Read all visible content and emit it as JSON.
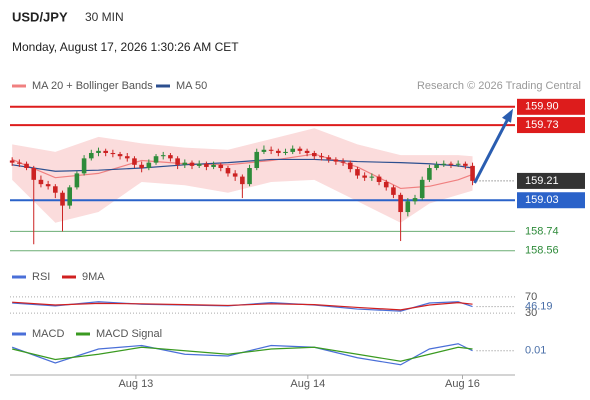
{
  "header": {
    "symbol": "USD/JPY",
    "interval": "30 MIN",
    "datetime": "Monday, August 17, 2026 1:30:26 AM CET"
  },
  "chart_data": [
    {
      "type": "candlestick",
      "credit": "Research © 2026 Trading Central",
      "up_color": "#2e8b3a",
      "down_color": "#cc2222",
      "last_price_color": "#333333",
      "candles": [
        [
          159.4,
          159.43,
          159.35,
          159.38
        ],
        [
          159.38,
          159.41,
          159.34,
          159.37
        ],
        [
          159.37,
          159.39,
          159.31,
          159.33
        ],
        [
          159.33,
          159.35,
          158.62,
          159.22
        ],
        [
          159.22,
          159.26,
          159.15,
          159.18
        ],
        [
          159.18,
          159.21,
          159.13,
          159.16
        ],
        [
          159.16,
          159.18,
          159.05,
          159.1
        ],
        [
          159.1,
          159.12,
          158.74,
          158.98
        ],
        [
          158.98,
          159.17,
          158.95,
          159.15
        ],
        [
          159.15,
          159.3,
          159.13,
          159.28
        ],
        [
          159.28,
          159.45,
          159.26,
          159.42
        ],
        [
          159.42,
          159.5,
          159.4,
          159.47
        ],
        [
          159.47,
          159.52,
          159.44,
          159.49
        ],
        [
          159.49,
          159.51,
          159.44,
          159.47
        ],
        [
          159.47,
          159.5,
          159.43,
          159.46
        ],
        [
          159.46,
          159.48,
          159.41,
          159.44
        ],
        [
          159.44,
          159.47,
          159.39,
          159.42
        ],
        [
          159.42,
          159.44,
          159.33,
          159.36
        ],
        [
          159.36,
          159.39,
          159.29,
          159.33
        ],
        [
          159.33,
          159.41,
          159.31,
          159.38
        ],
        [
          159.38,
          159.46,
          159.36,
          159.44
        ],
        [
          159.44,
          159.48,
          159.41,
          159.45
        ],
        [
          159.45,
          159.47,
          159.39,
          159.42
        ],
        [
          159.42,
          159.44,
          159.32,
          159.36
        ],
        [
          159.36,
          159.41,
          159.33,
          159.38
        ],
        [
          159.38,
          159.4,
          159.32,
          159.35
        ],
        [
          159.35,
          159.4,
          159.33,
          159.37
        ],
        [
          159.37,
          159.39,
          159.31,
          159.34
        ],
        [
          159.34,
          159.39,
          159.32,
          159.36
        ],
        [
          159.36,
          159.38,
          159.3,
          159.33
        ],
        [
          159.33,
          159.35,
          159.25,
          159.28
        ],
        [
          159.28,
          159.31,
          159.21,
          159.25
        ],
        [
          159.25,
          159.27,
          159.05,
          159.18
        ],
        [
          159.18,
          159.36,
          159.16,
          159.33
        ],
        [
          159.33,
          159.51,
          159.31,
          159.48
        ],
        [
          159.48,
          159.54,
          159.46,
          159.5
        ],
        [
          159.5,
          159.53,
          159.46,
          159.49
        ],
        [
          159.49,
          159.51,
          159.44,
          159.47
        ],
        [
          159.47,
          159.51,
          159.45,
          159.48
        ],
        [
          159.48,
          159.54,
          159.46,
          159.51
        ],
        [
          159.51,
          159.53,
          159.46,
          159.49
        ],
        [
          159.49,
          159.51,
          159.44,
          159.47
        ],
        [
          159.47,
          159.49,
          159.41,
          159.44
        ],
        [
          159.44,
          159.47,
          159.4,
          159.43
        ],
        [
          159.43,
          159.45,
          159.38,
          159.41
        ],
        [
          159.41,
          159.43,
          159.36,
          159.39
        ],
        [
          159.39,
          159.42,
          159.35,
          159.38
        ],
        [
          159.38,
          159.4,
          159.29,
          159.32
        ],
        [
          159.32,
          159.34,
          159.23,
          159.26
        ],
        [
          159.26,
          159.29,
          159.21,
          159.24
        ],
        [
          159.24,
          159.28,
          159.21,
          159.25
        ],
        [
          159.25,
          159.27,
          159.17,
          159.2
        ],
        [
          159.2,
          159.22,
          159.12,
          159.15
        ],
        [
          159.15,
          159.17,
          159.05,
          159.08
        ],
        [
          159.08,
          159.1,
          158.65,
          158.92
        ],
        [
          158.92,
          159.05,
          158.88,
          159.02
        ],
        [
          159.02,
          159.08,
          158.99,
          159.05
        ],
        [
          159.05,
          159.25,
          159.03,
          159.22
        ],
        [
          159.22,
          159.36,
          159.2,
          159.33
        ],
        [
          159.33,
          159.39,
          159.31,
          159.36
        ],
        [
          159.36,
          159.4,
          159.34,
          159.37
        ],
        [
          159.37,
          159.39,
          159.33,
          159.36
        ],
        [
          159.36,
          159.4,
          159.34,
          159.37
        ],
        [
          159.37,
          159.39,
          159.32,
          159.35
        ],
        [
          159.35,
          159.38,
          159.17,
          159.21
        ]
      ],
      "series": [
        {
          "name": "MA 20 + Bollinger Bands",
          "color": "#f08080",
          "x": [
            0,
            6,
            12,
            18,
            24,
            30,
            36,
            42,
            48,
            54,
            58,
            62,
            64
          ],
          "values": [
            159.41,
            159.24,
            159.28,
            159.4,
            159.37,
            159.36,
            159.4,
            159.46,
            159.34,
            159.14,
            159.16,
            159.22,
            159.27
          ]
        },
        {
          "name": "MA 50",
          "color": "#2c4f8f",
          "x": [
            0,
            6,
            12,
            18,
            24,
            30,
            36,
            42,
            48,
            54,
            58,
            62,
            64
          ],
          "values": [
            159.36,
            159.3,
            159.31,
            159.33,
            159.36,
            159.38,
            159.41,
            159.41,
            159.39,
            159.38,
            159.37,
            159.35,
            159.33
          ]
        }
      ],
      "bands": {
        "color": "#fbdcdc",
        "x": [
          0,
          6,
          12,
          18,
          24,
          30,
          36,
          42,
          48,
          54,
          58,
          62,
          64
        ],
        "upper": [
          159.55,
          159.48,
          159.62,
          159.56,
          159.52,
          159.5,
          159.6,
          159.7,
          159.55,
          159.45,
          159.45,
          159.45,
          159.44
        ],
        "lower": [
          159.22,
          158.82,
          158.92,
          159.2,
          159.17,
          159.1,
          159.2,
          159.22,
          159.02,
          158.82,
          159.0,
          159.08,
          159.12
        ]
      },
      "levels": [
        {
          "value": 159.9,
          "label": "159.90",
          "color": "#dd1c1c",
          "style": "box"
        },
        {
          "value": 159.73,
          "label": "159.73",
          "color": "#dd1c1c",
          "style": "box"
        },
        {
          "value": 159.03,
          "label": "159.03",
          "color": "#2a62c9",
          "style": "box"
        },
        {
          "value": 158.74,
          "label": "158.74",
          "color": "#2e8b3a",
          "style": "text"
        },
        {
          "value": 158.56,
          "label": "158.56",
          "color": "#2e8b3a",
          "style": "text"
        }
      ],
      "target": 159.9,
      "arrow_color": "#2a5db0",
      "xlim": [
        -0.3,
        69.9
      ],
      "ylim": [
        158.52,
        160.01
      ],
      "xticks": [
        {
          "value": 17.2,
          "label": "Aug 13"
        },
        {
          "value": 41.1,
          "label": "Aug 14"
        },
        {
          "value": 62.6,
          "label": "Aug 16"
        }
      ]
    },
    {
      "type": "line",
      "xlim": [
        -0.3,
        69.9
      ],
      "ylim": [
        18,
        92
      ],
      "yticks": [
        30,
        70
      ],
      "grid": true,
      "series": [
        {
          "name": "RSI",
          "color": "#4a6fd8",
          "x": [
            0,
            6,
            12,
            18,
            24,
            30,
            36,
            42,
            48,
            54,
            58,
            62,
            64
          ],
          "values": [
            55,
            48,
            58,
            52,
            50,
            48,
            56,
            50,
            40,
            35,
            55,
            58,
            46.19
          ]
        },
        {
          "name": "9MA",
          "color": "#d02020",
          "x": [
            0,
            6,
            12,
            18,
            24,
            30,
            36,
            42,
            48,
            54,
            58,
            62,
            64
          ],
          "values": [
            57,
            50,
            54,
            53,
            51,
            49,
            53,
            51,
            44,
            38,
            50,
            56,
            52
          ]
        }
      ]
    },
    {
      "type": "line",
      "xlim": [
        -0.3,
        69.9
      ],
      "ylim": [
        -0.1,
        0.1
      ],
      "series": [
        {
          "name": "MACD",
          "color": "#4a6fd8",
          "x": [
            0,
            6,
            12,
            18,
            24,
            30,
            36,
            42,
            48,
            54,
            58,
            62,
            64
          ],
          "values": [
            0.03,
            -0.06,
            0.02,
            0.04,
            -0.01,
            -0.02,
            0.04,
            0.03,
            -0.03,
            -0.07,
            0.02,
            0.05,
            0.01
          ]
        },
        {
          "name": "MACD Signal",
          "color": "#3a9a20",
          "x": [
            0,
            6,
            12,
            18,
            24,
            30,
            36,
            42,
            48,
            54,
            58,
            62,
            64
          ],
          "values": [
            0.02,
            -0.04,
            -0.01,
            0.03,
            0.01,
            -0.01,
            0.02,
            0.03,
            -0.01,
            -0.05,
            -0.01,
            0.03,
            0.02
          ]
        }
      ]
    }
  ]
}
